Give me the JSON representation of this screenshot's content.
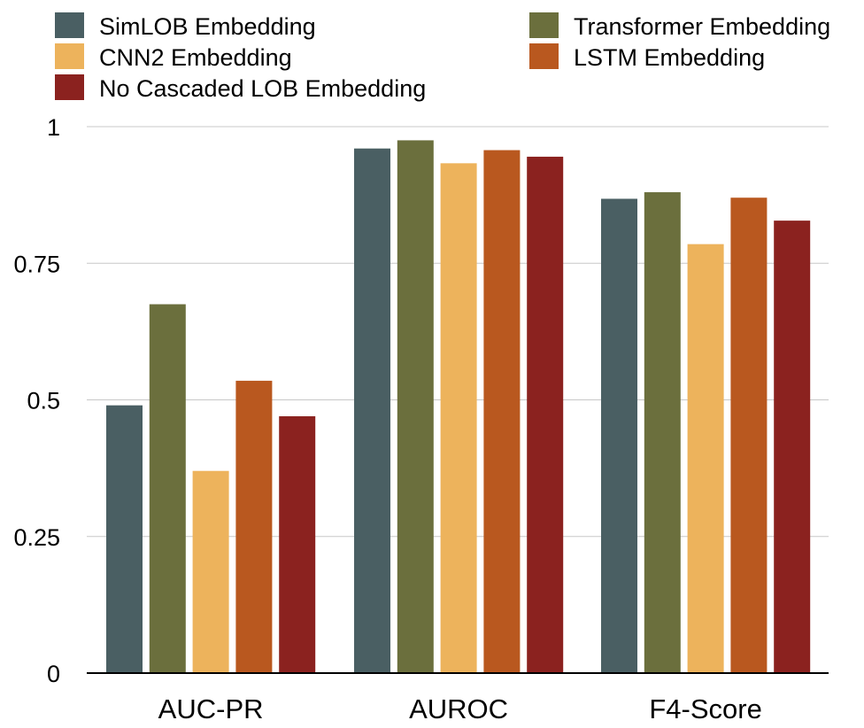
{
  "chart_data": {
    "type": "bar",
    "title": "",
    "xlabel": "",
    "ylabel": "",
    "categories": [
      "AUC-PR",
      "AUROC",
      "F4-Score"
    ],
    "ylim": [
      0,
      1
    ],
    "yticks": [
      0,
      0.25,
      0.5,
      0.75,
      1
    ],
    "ytick_labels": [
      "0",
      "0.25",
      "0.5",
      "0.75",
      "1"
    ],
    "grid": true,
    "legend_position": "top",
    "series": [
      {
        "name": "SimLOB Embedding",
        "color": "#4a5f63",
        "values": [
          0.49,
          0.96,
          0.868
        ]
      },
      {
        "name": "Transformer Embedding",
        "color": "#6b6f3d",
        "values": [
          0.675,
          0.975,
          0.88
        ]
      },
      {
        "name": "CNN2 Embedding",
        "color": "#edb35c",
        "values": [
          0.37,
          0.933,
          0.785
        ]
      },
      {
        "name": "LSTM Embedding",
        "color": "#b9581f",
        "values": [
          0.535,
          0.957,
          0.87
        ]
      },
      {
        "name": "No Cascaded LOB Embedding",
        "color": "#8b221f",
        "values": [
          0.47,
          0.945,
          0.828
        ]
      }
    ]
  }
}
